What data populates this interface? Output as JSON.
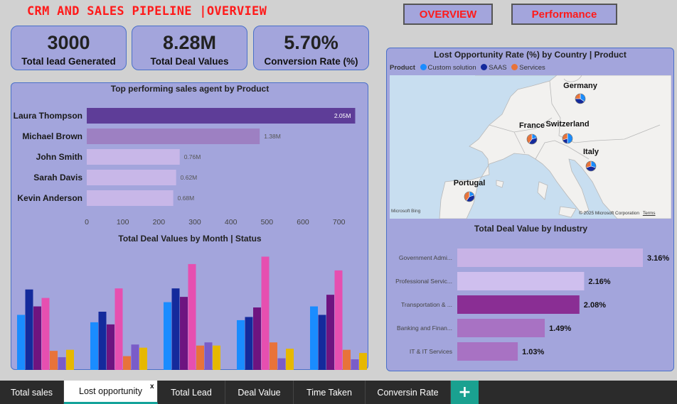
{
  "header": {
    "title": "CRM AND SALES PIPELINE |OVERVIEW"
  },
  "nav": {
    "overview": "OVERVIEW",
    "performance": "Performance"
  },
  "kpis": [
    {
      "value": "3000",
      "label": "Total lead Generated"
    },
    {
      "value": "8.28M",
      "label": "Total Deal Values"
    },
    {
      "value": "5.70%",
      "label": "Conversion Rate (%)"
    }
  ],
  "agents_chart": {
    "title": "Top performing sales agent by Product",
    "agents": [
      "Laura Thompson",
      "Michael Brown",
      "John Smith",
      "Sarah Davis",
      "Kevin Anderson"
    ],
    "bar_values": [
      745,
      480,
      258,
      248,
      240
    ],
    "data_labels": [
      "2.05M",
      "1.38M",
      "0.76M",
      "0.62M",
      "0.68M"
    ],
    "bar_colors": [
      "#5e3d98",
      "#9d80c2",
      "#c8b7e8",
      "#c8b7e8",
      "#c8b7e8"
    ],
    "ticks": [
      "0",
      "100",
      "200",
      "300",
      "400",
      "500",
      "600",
      "700"
    ],
    "xlim": [
      0,
      750
    ]
  },
  "month_chart": {
    "title": "Total Deal Values by Month | Status",
    "colors": [
      "#1a8cff",
      "#142a9c",
      "#6e1480",
      "#e64fb0",
      "#e8733a",
      "#7a5cc8",
      "#e6b800"
    ],
    "groups": [
      [
        0.52,
        0.76,
        0.6,
        0.68,
        0.18,
        0.12,
        0.19
      ],
      [
        0.45,
        0.55,
        0.43,
        0.77,
        0.13,
        0.24,
        0.21
      ],
      [
        0.64,
        0.77,
        0.69,
        1.0,
        0.23,
        0.26,
        0.23
      ],
      [
        0.47,
        0.5,
        0.59,
        1.07,
        0.26,
        0.11,
        0.2
      ],
      [
        0.6,
        0.52,
        0.71,
        0.94,
        0.19,
        0.1,
        0.16
      ]
    ],
    "ymax": 1.1
  },
  "map": {
    "title": "Lost Opportunity Rate (%) by Country | Product",
    "legend_label": "Product",
    "legend": [
      {
        "name": "Custom solution",
        "color": "#1a8cff"
      },
      {
        "name": "SAAS",
        "color": "#142a9c"
      },
      {
        "name": "Services",
        "color": "#e8733a"
      }
    ],
    "countries": [
      "Germany",
      "France",
      "Switzerland",
      "Italy",
      "Portugal"
    ],
    "credit": "Microsoft Bing",
    "copyright": "© 2025 Microsoft Corporation",
    "terms": "Terms"
  },
  "industry_chart": {
    "title": "Total Deal Value by Industry",
    "industries": [
      "Government Admi...",
      "Professional Servic...",
      "Transportation & ...",
      "Banking and Finan...",
      "IT & IT Services"
    ],
    "values": [
      3.16,
      2.16,
      2.08,
      1.49,
      1.03
    ],
    "labels": [
      "3.16%",
      "2.16%",
      "2.08%",
      "1.49%",
      "1.03%"
    ],
    "colors": [
      "#c8b3e6",
      "#cfbfee",
      "#8a2e94",
      "#a872c3",
      "#a872c3"
    ],
    "xmax": 3.16
  },
  "tabs": [
    "Total sales",
    "Lost opportunity",
    "Total Lead",
    "Deal Value",
    "Time Taken",
    "Conversin Rate"
  ],
  "active_tab_close": "x",
  "add_tab": "+"
}
